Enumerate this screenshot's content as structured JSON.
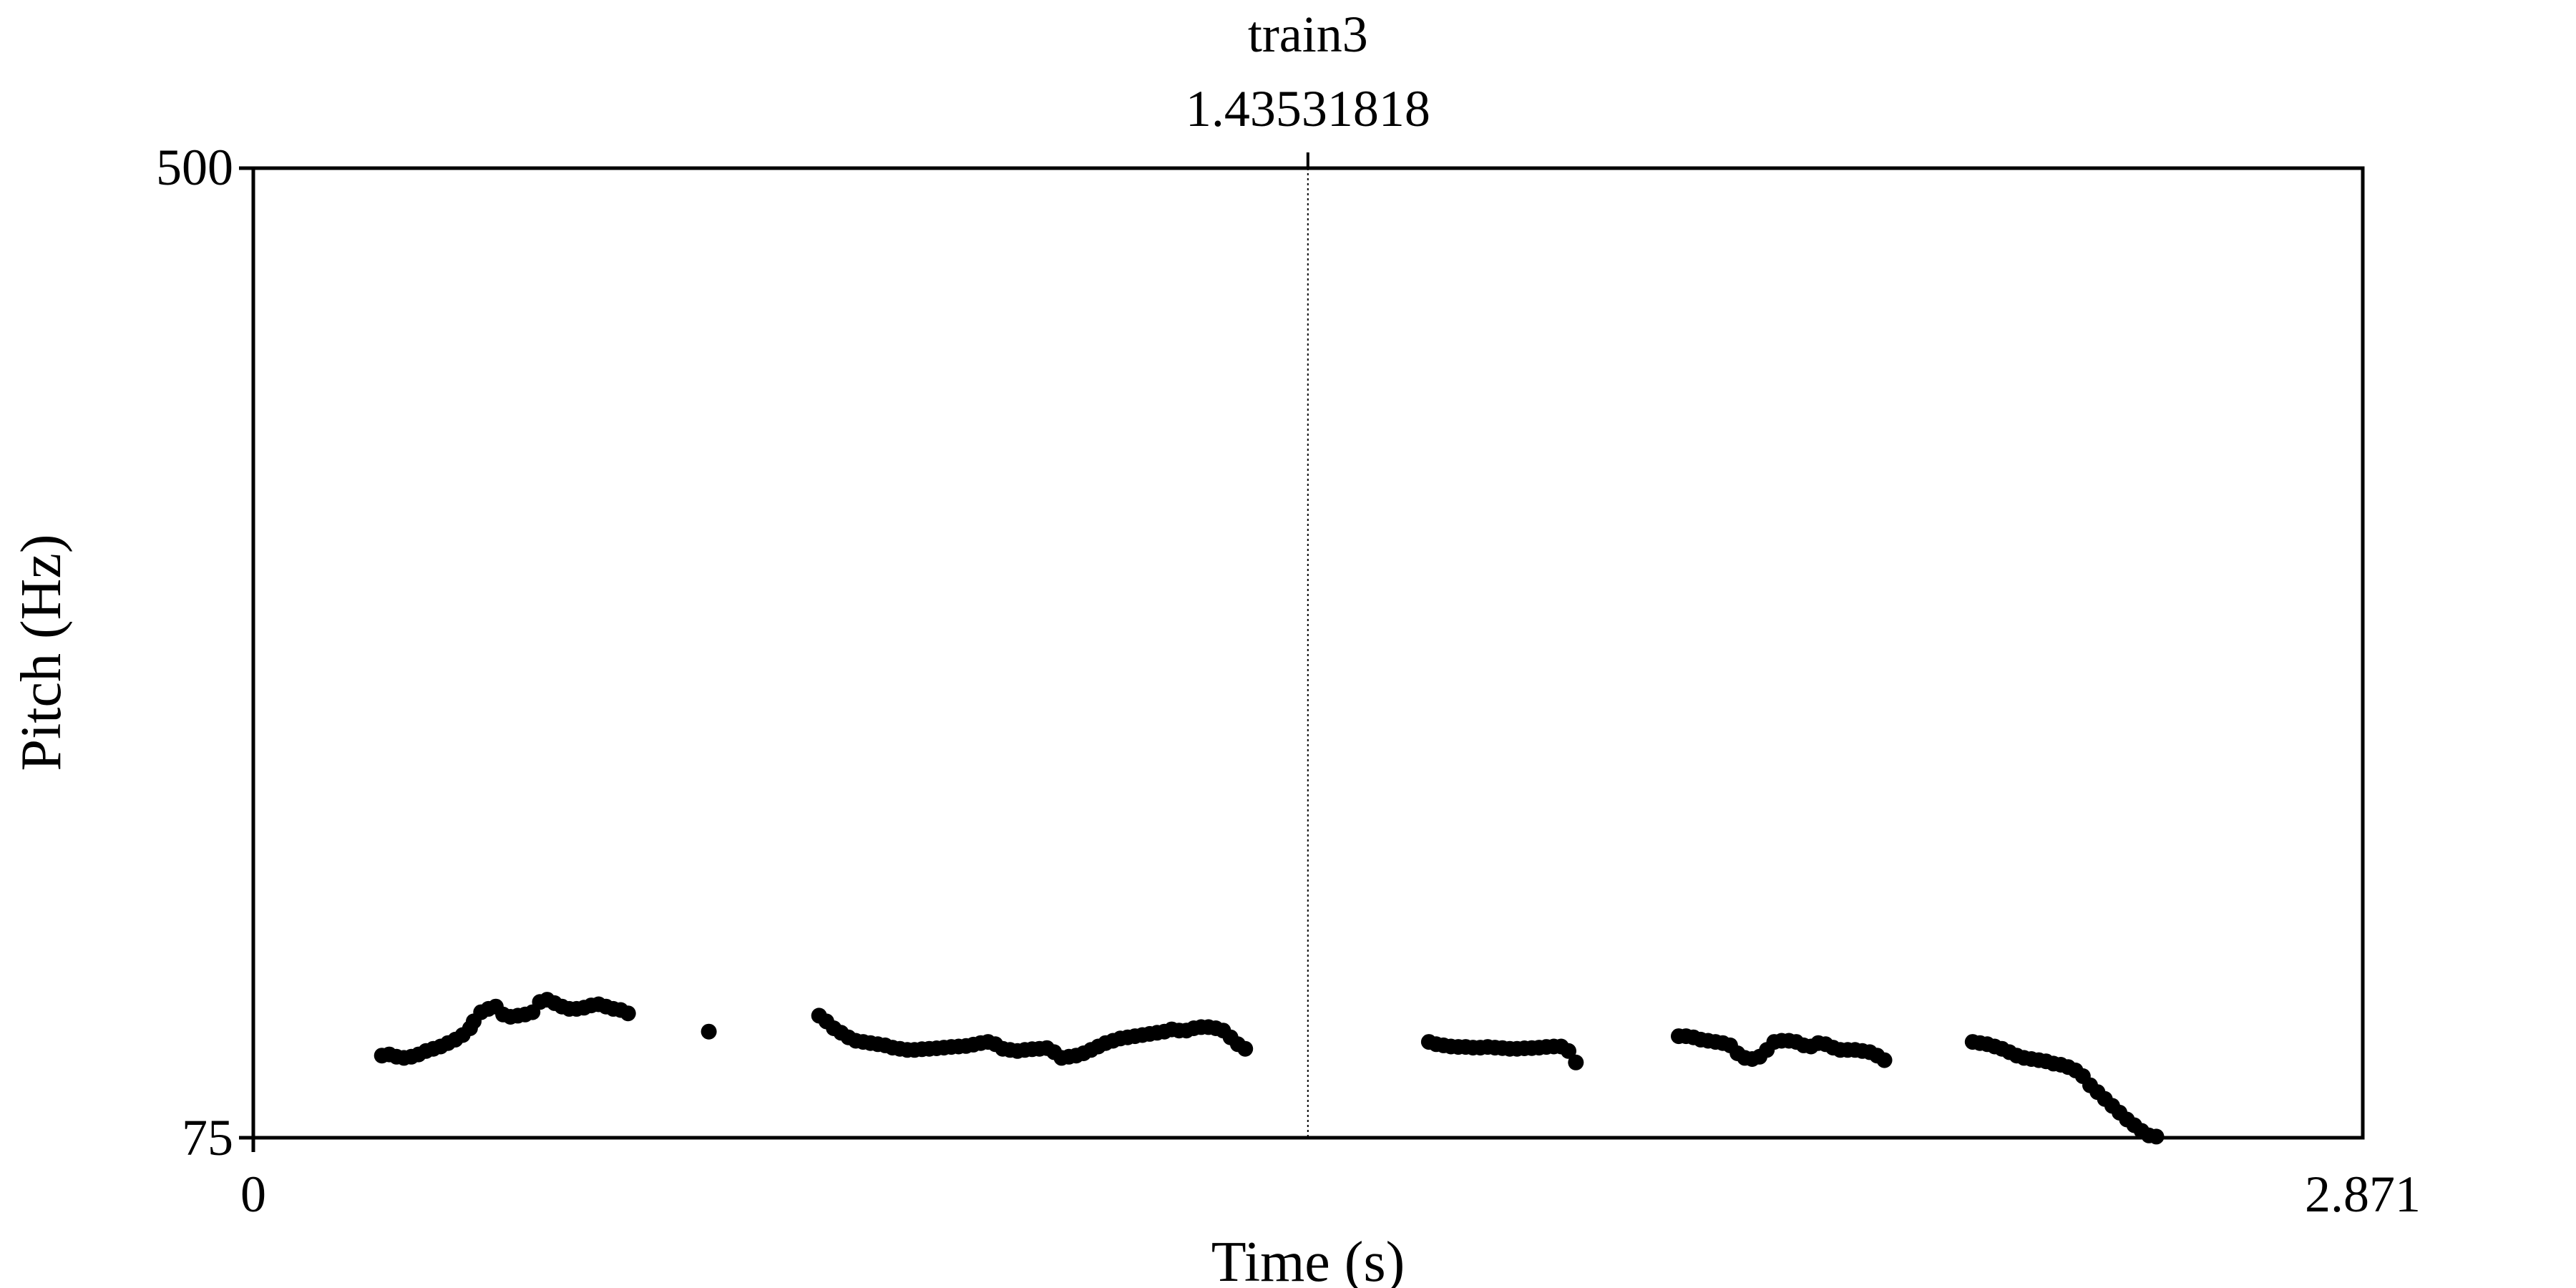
{
  "chart_data": {
    "type": "scatter",
    "title": "train3",
    "cursor_time_label": "1.43531818",
    "cursor_time": 1.43531818,
    "xlabel": "Time (s)",
    "ylabel": "Pitch (Hz)",
    "xlim": [
      0,
      2.871
    ],
    "ylim": [
      75,
      500
    ],
    "x_tick_labels": [
      "0",
      "2.871"
    ],
    "y_tick_labels": [
      "75",
      "500"
    ],
    "grid": false,
    "marker_color": "#000000",
    "segments": [
      {
        "points": [
          [
            0.175,
            111
          ],
          [
            0.185,
            111.5
          ],
          [
            0.195,
            110.5
          ],
          [
            0.205,
            110
          ],
          [
            0.215,
            110.5
          ],
          [
            0.225,
            111.5
          ],
          [
            0.235,
            113
          ],
          [
            0.245,
            114
          ],
          [
            0.255,
            115
          ],
          [
            0.265,
            116.5
          ],
          [
            0.275,
            118
          ],
          [
            0.285,
            120
          ],
          [
            0.295,
            123
          ],
          [
            0.3,
            126
          ],
          [
            0.31,
            130
          ],
          [
            0.32,
            131.5
          ],
          [
            0.33,
            132.5
          ],
          [
            0.34,
            129
          ],
          [
            0.35,
            128
          ],
          [
            0.36,
            128.5
          ],
          [
            0.37,
            129
          ],
          [
            0.38,
            130
          ],
          [
            0.39,
            134.5
          ],
          [
            0.4,
            135.5
          ],
          [
            0.41,
            134
          ],
          [
            0.42,
            132.5
          ],
          [
            0.43,
            131.5
          ],
          [
            0.44,
            131.5
          ],
          [
            0.45,
            132
          ],
          [
            0.46,
            133
          ],
          [
            0.47,
            133.5
          ],
          [
            0.48,
            132.5
          ],
          [
            0.49,
            131.5
          ],
          [
            0.5,
            131
          ],
          [
            0.51,
            129.5
          ],
          [
            0.62,
            121.5
          ]
        ]
      },
      {
        "points": [
          [
            0.77,
            128.5
          ],
          [
            0.78,
            126
          ],
          [
            0.79,
            123
          ],
          [
            0.8,
            121
          ],
          [
            0.81,
            119
          ],
          [
            0.82,
            117.5
          ],
          [
            0.83,
            117
          ],
          [
            0.84,
            116.5
          ],
          [
            0.85,
            116
          ],
          [
            0.86,
            115.5
          ],
          [
            0.87,
            114.5
          ],
          [
            0.88,
            114
          ],
          [
            0.89,
            113.5
          ],
          [
            0.9,
            113.5
          ],
          [
            0.91,
            113.8
          ],
          [
            0.92,
            114
          ],
          [
            0.93,
            114.2
          ],
          [
            0.94,
            114.5
          ],
          [
            0.95,
            114.8
          ],
          [
            0.96,
            115
          ],
          [
            0.97,
            115.2
          ],
          [
            0.98,
            115.8
          ],
          [
            0.99,
            116.5
          ],
          [
            1.0,
            117
          ],
          [
            1.01,
            116
          ],
          [
            1.02,
            114
          ],
          [
            1.03,
            113.5
          ],
          [
            1.04,
            113
          ],
          [
            1.05,
            113.5
          ],
          [
            1.06,
            113.8
          ],
          [
            1.07,
            114
          ],
          [
            1.08,
            114.3
          ],
          [
            1.09,
            112.5
          ],
          [
            1.1,
            110
          ],
          [
            1.11,
            110.5
          ],
          [
            1.12,
            111
          ],
          [
            1.13,
            112
          ],
          [
            1.14,
            113.5
          ],
          [
            1.15,
            115
          ],
          [
            1.16,
            116.5
          ],
          [
            1.17,
            117.5
          ],
          [
            1.18,
            118.5
          ],
          [
            1.19,
            119
          ],
          [
            1.2,
            119.5
          ],
          [
            1.21,
            120
          ],
          [
            1.22,
            120.5
          ],
          [
            1.23,
            121
          ],
          [
            1.24,
            121.5
          ],
          [
            1.25,
            122.5
          ],
          [
            1.26,
            122
          ],
          [
            1.27,
            122
          ],
          [
            1.28,
            123
          ],
          [
            1.29,
            123.5
          ],
          [
            1.3,
            123.5
          ],
          [
            1.31,
            123
          ],
          [
            1.32,
            122
          ],
          [
            1.33,
            119
          ],
          [
            1.34,
            116
          ],
          [
            1.35,
            114
          ]
        ]
      },
      {
        "points": [
          [
            1.6,
            117
          ],
          [
            1.61,
            116
          ],
          [
            1.62,
            115.5
          ],
          [
            1.63,
            115
          ],
          [
            1.64,
            114.8
          ],
          [
            1.65,
            114.8
          ],
          [
            1.66,
            114.5
          ],
          [
            1.67,
            114.5
          ],
          [
            1.68,
            114.8
          ],
          [
            1.69,
            114.5
          ],
          [
            1.7,
            114.3
          ],
          [
            1.71,
            114
          ],
          [
            1.72,
            114
          ],
          [
            1.73,
            114.2
          ],
          [
            1.74,
            114.3
          ],
          [
            1.75,
            114.5
          ],
          [
            1.76,
            114.8
          ],
          [
            1.77,
            115
          ],
          [
            1.78,
            115
          ],
          [
            1.79,
            113
          ],
          [
            1.8,
            108
          ]
        ]
      },
      {
        "points": [
          [
            1.94,
            119.5
          ],
          [
            1.95,
            119.5
          ],
          [
            1.96,
            119
          ],
          [
            1.97,
            118
          ],
          [
            1.98,
            117.5
          ],
          [
            1.99,
            117
          ],
          [
            2.0,
            116.5
          ],
          [
            2.01,
            115.5
          ],
          [
            2.02,
            112
          ],
          [
            2.03,
            110
          ],
          [
            2.04,
            109.5
          ],
          [
            2.05,
            110.5
          ],
          [
            2.06,
            113.5
          ],
          [
            2.07,
            117
          ],
          [
            2.08,
            117.5
          ],
          [
            2.09,
            117.5
          ],
          [
            2.1,
            117
          ],
          [
            2.11,
            115.5
          ],
          [
            2.12,
            115
          ],
          [
            2.13,
            116.5
          ],
          [
            2.14,
            116
          ],
          [
            2.15,
            114.5
          ],
          [
            2.16,
            113.5
          ],
          [
            2.17,
            113.5
          ],
          [
            2.18,
            113.5
          ],
          [
            2.19,
            113
          ],
          [
            2.2,
            112.5
          ],
          [
            2.21,
            111
          ],
          [
            2.22,
            109
          ]
        ]
      },
      {
        "points": [
          [
            2.34,
            117
          ],
          [
            2.35,
            116.5
          ],
          [
            2.36,
            116
          ],
          [
            2.37,
            115
          ],
          [
            2.38,
            114
          ],
          [
            2.39,
            112.5
          ],
          [
            2.4,
            111
          ],
          [
            2.41,
            110
          ],
          [
            2.42,
            109.5
          ],
          [
            2.43,
            109
          ],
          [
            2.44,
            108.5
          ],
          [
            2.45,
            107.5
          ],
          [
            2.46,
            107
          ],
          [
            2.47,
            106
          ],
          [
            2.48,
            104.5
          ],
          [
            2.49,
            102
          ],
          [
            2.5,
            98
          ],
          [
            2.51,
            95
          ],
          [
            2.52,
            92
          ],
          [
            2.53,
            89
          ],
          [
            2.54,
            86
          ],
          [
            2.55,
            83
          ],
          [
            2.56,
            80.5
          ],
          [
            2.57,
            78
          ],
          [
            2.58,
            76
          ],
          [
            2.59,
            75.5
          ]
        ]
      }
    ]
  }
}
